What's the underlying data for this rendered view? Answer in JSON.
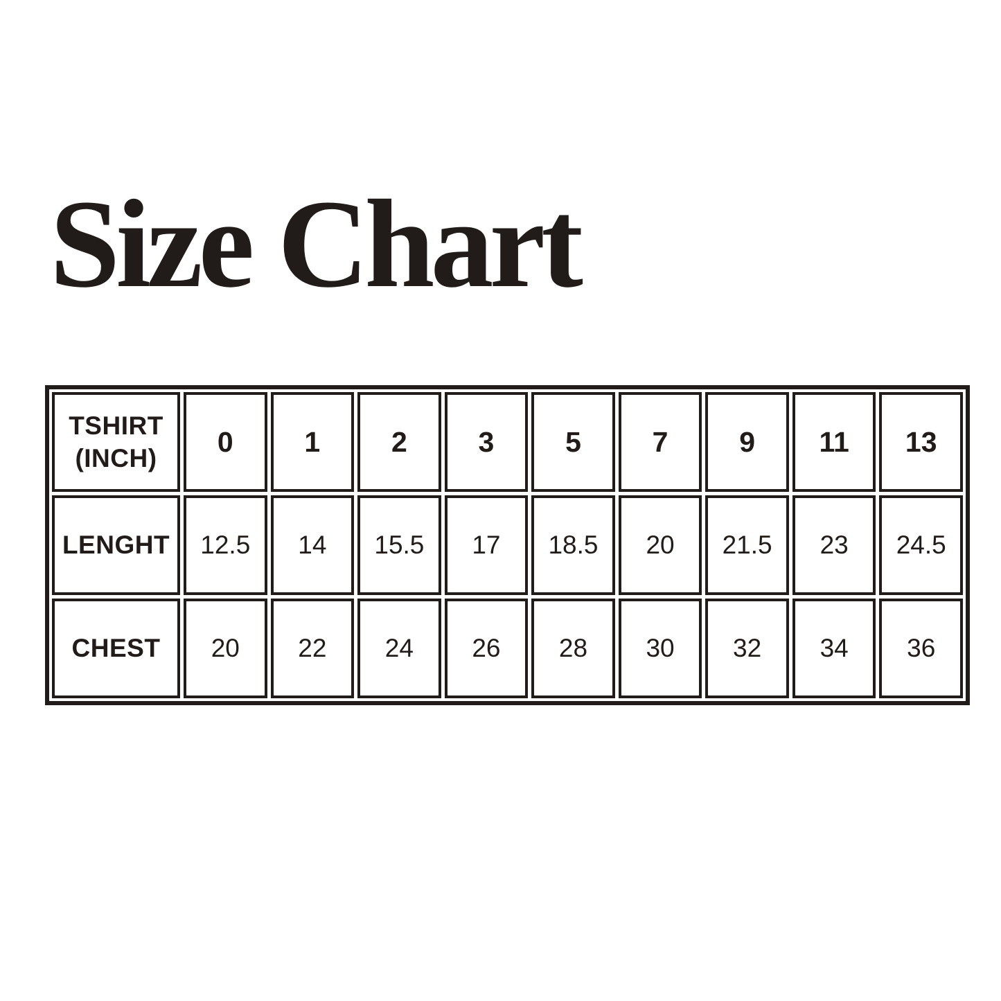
{
  "page": {
    "background": "#ffffff",
    "ink": "#211c1a"
  },
  "title": "Size Chart",
  "table": {
    "header_label_line1": "TSHIRT",
    "header_label_line2": "(INCH)"
  },
  "chart_data": {
    "type": "table",
    "title": "Size Chart",
    "columns": [
      "TSHIRT (INCH)",
      "0",
      "1",
      "2",
      "3",
      "5",
      "7",
      "9",
      "11",
      "13"
    ],
    "rows": [
      [
        "LENGHT",
        "12.5",
        "14",
        "15.5",
        "17",
        "18.5",
        "20",
        "21.5",
        "23",
        "24.5"
      ],
      [
        "CHEST",
        "20",
        "22",
        "24",
        "26",
        "28",
        "30",
        "32",
        "34",
        "36"
      ]
    ]
  }
}
